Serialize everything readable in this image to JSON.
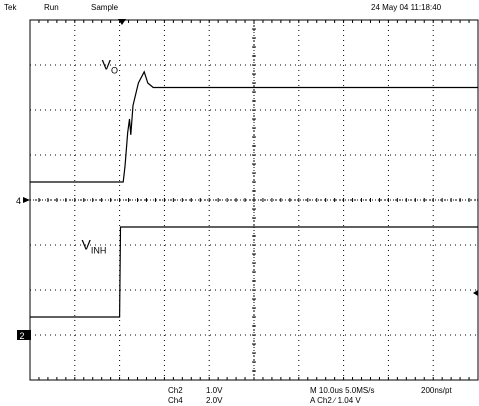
{
  "header": {
    "brand": "Tek",
    "run_state": "Run",
    "acq_mode": "Sample",
    "timestamp": "24 May 04 11:18:40"
  },
  "channels": [
    {
      "label": "Ch2",
      "scale": "1.0V"
    },
    {
      "label": "Ch4",
      "scale": "2.0V"
    }
  ],
  "timebase": "M 10.0us 5.0MS/s",
  "record_interval": "200ns/pt",
  "trigger": {
    "source_text": "A  Ch2  ∕  1.04   V"
  },
  "markers": {
    "ch4_ground": "4",
    "ch2_ground": "2"
  },
  "chart_data": {
    "type": "line",
    "title": "",
    "xlabel": "",
    "ylabel": "",
    "grid": true,
    "x_divisions": 10,
    "y_divisions": 8,
    "xlim": [
      0,
      10
    ],
    "ylim": [
      0,
      8
    ],
    "series": [
      {
        "name": "VO",
        "label_main": "V",
        "label_sub": "O",
        "points": [
          [
            0.0,
            4.4
          ],
          [
            2.08,
            4.4
          ],
          [
            2.12,
            4.75
          ],
          [
            2.18,
            5.5
          ],
          [
            2.22,
            5.8
          ],
          [
            2.25,
            5.45
          ],
          [
            2.3,
            6.1
          ],
          [
            2.42,
            6.6
          ],
          [
            2.55,
            6.85
          ],
          [
            2.63,
            6.6
          ],
          [
            2.75,
            6.5
          ],
          [
            3.0,
            6.5
          ],
          [
            10.0,
            6.5
          ]
        ]
      },
      {
        "name": "VINH",
        "label_main": "V",
        "label_sub": "INH",
        "points": [
          [
            0.0,
            1.4
          ],
          [
            2.0,
            1.4
          ],
          [
            2.02,
            3.4
          ],
          [
            10.0,
            3.4
          ]
        ]
      }
    ]
  }
}
